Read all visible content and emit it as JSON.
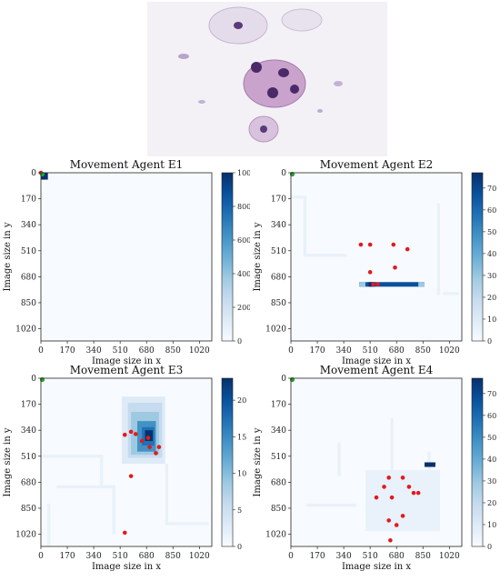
{
  "figure": {
    "micrograph_alt": "",
    "colormap": [
      "#f7fbff",
      "#deebf7",
      "#c6dbef",
      "#9ecae1",
      "#6baed6",
      "#4292c6",
      "#2171b5",
      "#08519c",
      "#08306b"
    ],
    "start_marker_color": "#2ca02c",
    "point_color": "#e31a1c"
  },
  "chart_data": [
    {
      "type": "heatmap",
      "title": "Movement Agent E1",
      "xlabel": "Image size in x",
      "ylabel": "Image size in y",
      "xticks": [
        "0",
        "170",
        "340",
        "510",
        "680",
        "850",
        "1020"
      ],
      "yticks": [
        "0",
        "170",
        "340",
        "510",
        "680",
        "850",
        "1020"
      ],
      "xlim": [
        0,
        1100
      ],
      "ylim": [
        0,
        1100
      ],
      "colorbar": {
        "min": 0,
        "max": 1000,
        "ticks": [
          "0",
          "200",
          "400",
          "600",
          "800",
          "1000"
        ]
      },
      "hotspots": [
        {
          "x": 0,
          "y": 0,
          "w": 45,
          "h": 45,
          "value": 1000
        }
      ],
      "visits": [
        [
          0,
          0
        ]
      ],
      "start": [
        0,
        0
      ]
    },
    {
      "type": "heatmap",
      "title": "Movement Agent E2",
      "xlabel": "Image size in x",
      "ylabel": "Image size in y",
      "xticks": [
        "0",
        "170",
        "340",
        "510",
        "680",
        "850",
        "1020"
      ],
      "yticks": [
        "0",
        "170",
        "340",
        "510",
        "680",
        "850",
        "1020"
      ],
      "xlim": [
        0,
        1100
      ],
      "ylim": [
        0,
        1100
      ],
      "colorbar": {
        "min": 0,
        "max": 77,
        "ticks": [
          "0",
          "10",
          "20",
          "30",
          "40",
          "50",
          "60",
          "70"
        ]
      },
      "hotspots": [
        {
          "x": 440,
          "y": 715,
          "w": 420,
          "h": 30,
          "value": 65
        },
        {
          "x": 440,
          "y": 715,
          "w": 40,
          "h": 30,
          "value": 25
        },
        {
          "x": 820,
          "y": 715,
          "w": 40,
          "h": 30,
          "value": 25
        },
        {
          "x": 500,
          "y": 715,
          "w": 40,
          "h": 30,
          "value": 77
        }
      ],
      "faint": [
        {
          "x": 0,
          "y": 150,
          "w": 80,
          "h": 20
        },
        {
          "x": 80,
          "y": 150,
          "w": 20,
          "h": 400
        },
        {
          "x": 100,
          "y": 530,
          "w": 260,
          "h": 20
        },
        {
          "x": 940,
          "y": 200,
          "w": 20,
          "h": 600
        },
        {
          "x": 980,
          "y": 780,
          "w": 100,
          "h": 20
        }
      ],
      "visits": [
        [
          450,
          470
        ],
        [
          510,
          470
        ],
        [
          660,
          470
        ],
        [
          750,
          500
        ],
        [
          510,
          650
        ],
        [
          670,
          620
        ],
        [
          530,
          730
        ],
        [
          560,
          730
        ]
      ],
      "start": [
        0,
        0
      ]
    },
    {
      "type": "heatmap",
      "title": "Movement Agent E3",
      "xlabel": "Image size in x",
      "ylabel": "Image size in y",
      "xticks": [
        "0",
        "170",
        "340",
        "510",
        "680",
        "850",
        "1020"
      ],
      "yticks": [
        "0",
        "170",
        "340",
        "510",
        "680",
        "850",
        "1020"
      ],
      "xlim": [
        0,
        1100
      ],
      "ylim": [
        0,
        1100
      ],
      "colorbar": {
        "min": 0,
        "max": 23,
        "ticks": [
          "0",
          "5",
          "10",
          "15",
          "20"
        ]
      },
      "hotspots": [
        {
          "x": 520,
          "y": 120,
          "w": 280,
          "h": 440,
          "value": 2
        },
        {
          "x": 560,
          "y": 160,
          "w": 220,
          "h": 360,
          "value": 5
        },
        {
          "x": 580,
          "y": 220,
          "w": 180,
          "h": 280,
          "value": 9
        },
        {
          "x": 620,
          "y": 280,
          "w": 120,
          "h": 200,
          "value": 13
        },
        {
          "x": 650,
          "y": 320,
          "w": 80,
          "h": 120,
          "value": 18
        },
        {
          "x": 670,
          "y": 340,
          "w": 50,
          "h": 70,
          "value": 23
        }
      ],
      "faint": [
        {
          "x": 0,
          "y": 500,
          "w": 400,
          "h": 20
        },
        {
          "x": 380,
          "y": 500,
          "w": 20,
          "h": 200
        },
        {
          "x": 100,
          "y": 700,
          "w": 380,
          "h": 20
        },
        {
          "x": 460,
          "y": 700,
          "w": 20,
          "h": 320
        },
        {
          "x": 800,
          "y": 560,
          "w": 20,
          "h": 400
        },
        {
          "x": 820,
          "y": 940,
          "w": 260,
          "h": 20
        },
        {
          "x": 40,
          "y": 820,
          "w": 20,
          "h": 280
        }
      ],
      "visits": [
        [
          540,
          370
        ],
        [
          580,
          350
        ],
        [
          610,
          365
        ],
        [
          650,
          410
        ],
        [
          690,
          390
        ],
        [
          700,
          450
        ],
        [
          760,
          450
        ],
        [
          740,
          490
        ],
        [
          580,
          640
        ],
        [
          540,
          1010
        ]
      ],
      "start": [
        0,
        0
      ]
    },
    {
      "type": "heatmap",
      "title": "Movement Agent E4",
      "xlabel": "Image size in x",
      "ylabel": "Image size in y",
      "xticks": [
        "0",
        "170",
        "340",
        "510",
        "680",
        "850",
        "1020"
      ],
      "yticks": [
        "0",
        "170",
        "340",
        "510",
        "680",
        "850",
        "1020"
      ],
      "xlim": [
        0,
        1100
      ],
      "ylim": [
        0,
        1100
      ],
      "colorbar": {
        "min": 0,
        "max": 77,
        "ticks": [
          "0",
          "10",
          "20",
          "30",
          "40",
          "50",
          "60",
          "70"
        ]
      },
      "hotspots": [
        {
          "x": 860,
          "y": 550,
          "w": 70,
          "h": 30,
          "value": 77
        }
      ],
      "faint": [
        {
          "x": 480,
          "y": 600,
          "w": 480,
          "h": 400
        },
        {
          "x": 300,
          "y": 420,
          "w": 20,
          "h": 220
        },
        {
          "x": 100,
          "y": 820,
          "w": 320,
          "h": 20
        },
        {
          "x": 640,
          "y": 260,
          "w": 20,
          "h": 340
        },
        {
          "x": 880,
          "y": 480,
          "w": 20,
          "h": 120
        }
      ],
      "visits": [
        [
          630,
          650
        ],
        [
          600,
          710
        ],
        [
          720,
          650
        ],
        [
          760,
          710
        ],
        [
          790,
          750
        ],
        [
          820,
          750
        ],
        [
          550,
          780
        ],
        [
          650,
          780
        ],
        [
          720,
          900
        ],
        [
          630,
          930
        ],
        [
          680,
          960
        ],
        [
          640,
          1060
        ]
      ],
      "start": [
        0,
        0
      ]
    }
  ]
}
